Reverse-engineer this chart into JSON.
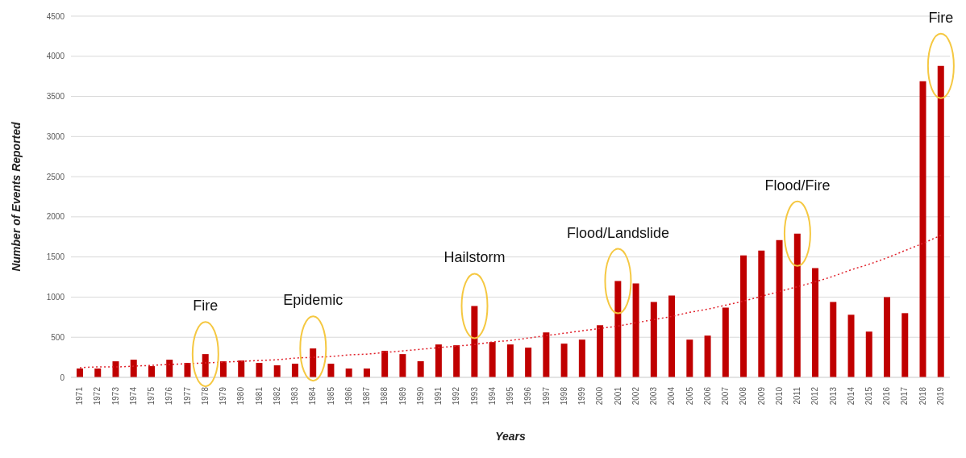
{
  "chart_data": {
    "type": "bar",
    "xlabel": "Years",
    "ylabel": "Number of Events Reported",
    "categories": [
      "1971",
      "1972",
      "1973",
      "1974",
      "1975",
      "1976",
      "1977",
      "1978",
      "1979",
      "1980",
      "1981",
      "1982",
      "1983",
      "1984",
      "1985",
      "1986",
      "1987",
      "1988",
      "1989",
      "1990",
      "1991",
      "1992",
      "1993",
      "1994",
      "1995",
      "1996",
      "1997",
      "1998",
      "1999",
      "2000",
      "2001",
      "2002",
      "2003",
      "2004",
      "2005",
      "2006",
      "2007",
      "2008",
      "2009",
      "2010",
      "2011",
      "2012",
      "2013",
      "2014",
      "2015",
      "2016",
      "2017",
      "2018",
      "2019"
    ],
    "series": [
      {
        "color": "#c00000",
        "values": [
          110,
          110,
          200,
          220,
          140,
          220,
          180,
          290,
          200,
          210,
          180,
          150,
          170,
          360,
          170,
          110,
          110,
          330,
          290,
          200,
          410,
          400,
          890,
          440,
          410,
          370,
          560,
          420,
          470,
          650,
          1200,
          1170,
          940,
          1020,
          470,
          520,
          870,
          1520,
          1580,
          1710,
          1790,
          1360,
          940,
          780,
          570,
          1000,
          800,
          3690,
          3880
        ]
      },
      {
        "type": "line",
        "color": "#e0202a",
        "line_style": "dotted",
        "marker": "none",
        "values": [
          120,
          130,
          130,
          140,
          150,
          160,
          170,
          180,
          190,
          200,
          210,
          220,
          240,
          250,
          260,
          280,
          290,
          310,
          330,
          350,
          370,
          390,
          410,
          440,
          460,
          490,
          520,
          550,
          580,
          610,
          640,
          680,
          720,
          760,
          810,
          850,
          900,
          950,
          1010,
          1070,
          1130,
          1190,
          1260,
          1340,
          1410,
          1490,
          1580,
          1670,
          1770
        ]
      }
    ],
    "ylim": [
      0,
      4500
    ],
    "yticks": [
      0,
      500,
      1000,
      1500,
      2000,
      2500,
      3000,
      3500,
      4000,
      4500
    ],
    "grid": "y",
    "legend": false,
    "annotations": [
      {
        "text": "Fire",
        "x": "1978",
        "y": 290
      },
      {
        "text": "Epidemic",
        "x": "1984",
        "y": 360
      },
      {
        "text": "Hailstorm",
        "x": "1993",
        "y": 890
      },
      {
        "text": "Flood/Landslide",
        "x": "2001",
        "y": 1200
      },
      {
        "text": "Flood/Fire",
        "x": "2011",
        "y": 1790
      },
      {
        "text": "Fire",
        "x": "2019",
        "y": 3880
      }
    ]
  }
}
